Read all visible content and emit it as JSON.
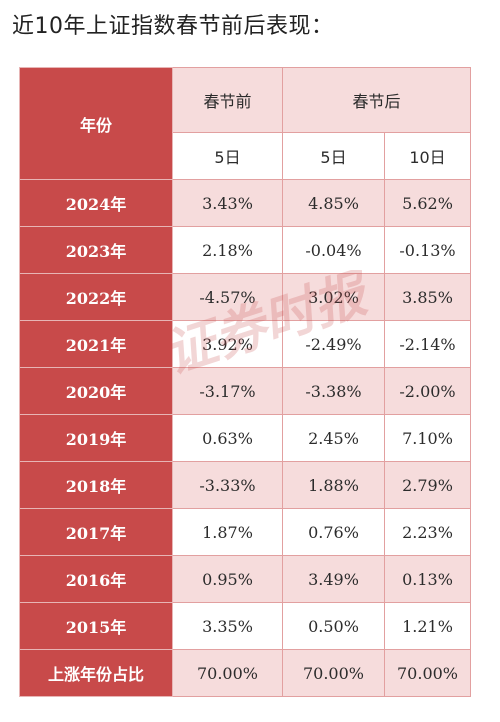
{
  "title": "近10年上证指数春节前后表现：",
  "header": {
    "year_label": "年份",
    "before_label": "春节前",
    "after_label": "春节后",
    "sub": [
      "5日",
      "5日",
      "10日"
    ]
  },
  "rows": [
    {
      "year": "2024年",
      "before5": "3.43%",
      "after5": "4.85%",
      "after10": "5.62%"
    },
    {
      "year": "2023年",
      "before5": "2.18%",
      "after5": "-0.04%",
      "after10": "-0.13%"
    },
    {
      "year": "2022年",
      "before5": "-4.57%",
      "after5": "3.02%",
      "after10": "3.85%"
    },
    {
      "year": "2021年",
      "before5": "3.92%",
      "after5": "-2.49%",
      "after10": "-2.14%"
    },
    {
      "year": "2020年",
      "before5": "-3.17%",
      "after5": "-3.38%",
      "after10": "-2.00%"
    },
    {
      "year": "2019年",
      "before5": "0.63%",
      "after5": "2.45%",
      "after10": "7.10%"
    },
    {
      "year": "2018年",
      "before5": "-3.33%",
      "after5": "1.88%",
      "after10": "2.79%"
    },
    {
      "year": "2017年",
      "before5": "1.87%",
      "after5": "0.76%",
      "after10": "2.23%"
    },
    {
      "year": "2016年",
      "before5": "0.95%",
      "after5": "3.49%",
      "after10": "0.13%"
    },
    {
      "year": "2015年",
      "before5": "3.35%",
      "after5": "0.50%",
      "after10": "1.21%"
    }
  ],
  "summary": {
    "label": "上涨年份占比",
    "before5": "70.00%",
    "after5": "70.00%",
    "after10": "70.00%"
  },
  "watermark": "证券时报",
  "colors": {
    "header_red": "#c84a4a",
    "row_pink": "#f6dcdc",
    "border": "#e2a0a0",
    "watermark": "#c84a4a"
  }
}
